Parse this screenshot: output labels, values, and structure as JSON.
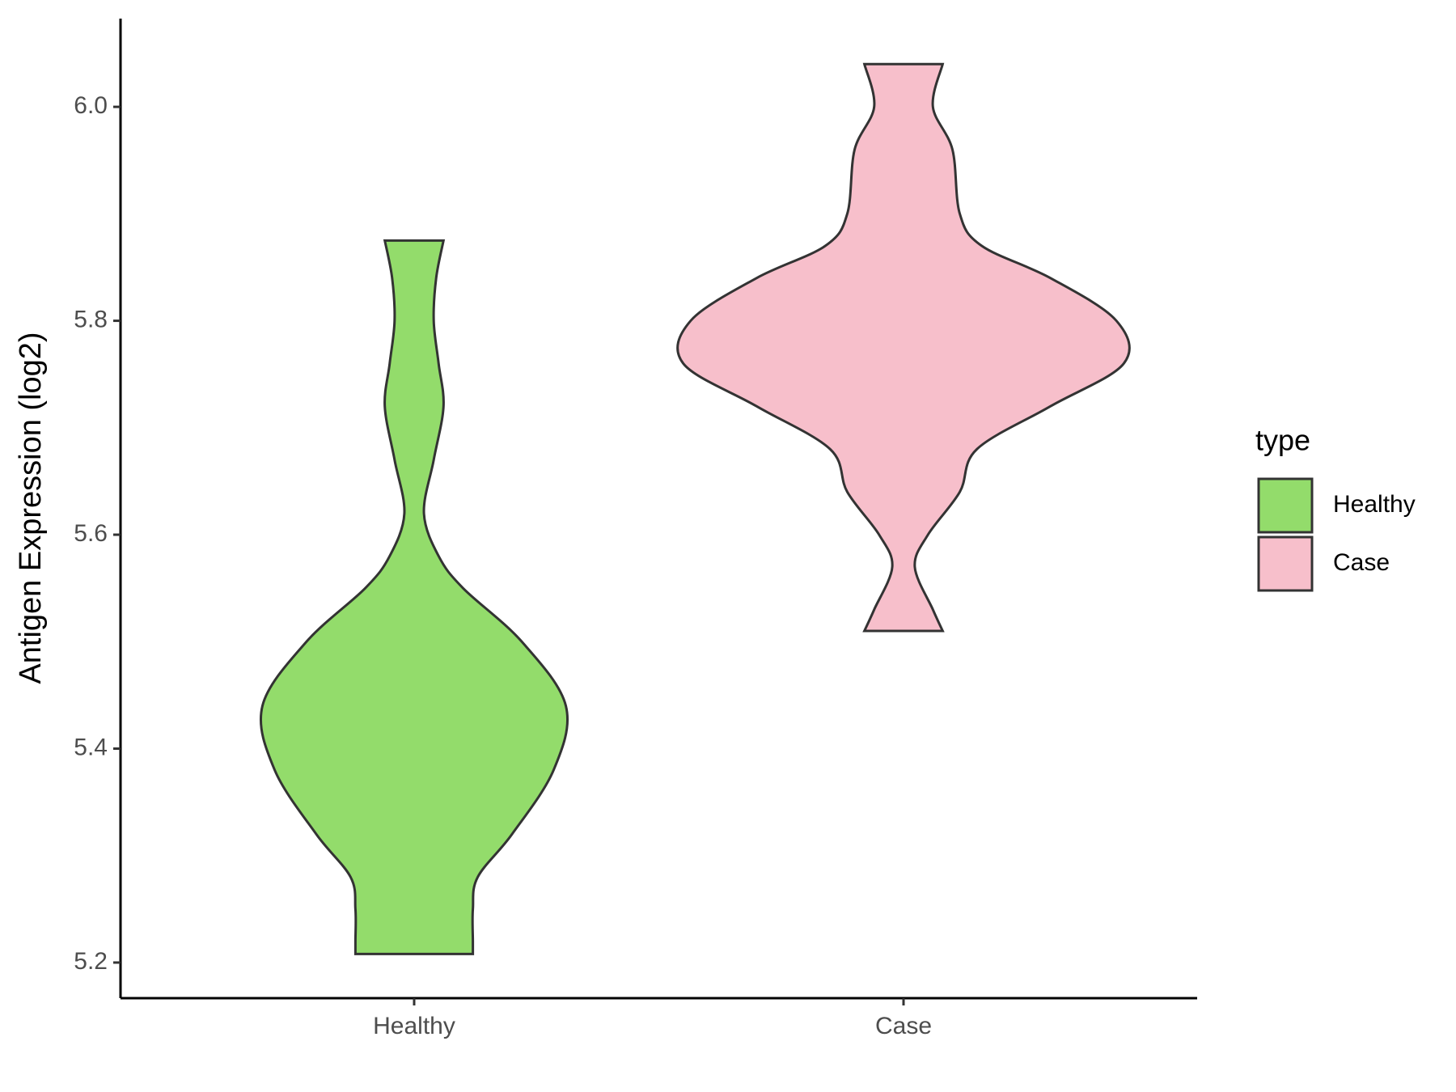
{
  "chart_data": {
    "type": "violin",
    "y_label": "Antigen Expression (log2)",
    "categories": [
      "Healthy",
      "Case"
    ],
    "series": [
      {
        "name": "Healthy",
        "color": "#93dc6b",
        "y": [
          5.875,
          5.84,
          5.8,
          5.76,
          5.72,
          5.67,
          5.62,
          5.58,
          5.55,
          5.5,
          5.44,
          5.38,
          5.32,
          5.28,
          5.25,
          5.22,
          5.208
        ],
        "width": [
          0.06,
          0.045,
          0.04,
          0.05,
          0.06,
          0.04,
          0.02,
          0.05,
          0.1,
          0.22,
          0.31,
          0.285,
          0.2,
          0.13,
          0.12,
          0.12,
          0.12
        ]
      },
      {
        "name": "Case",
        "color": "#f7bfcb",
        "y": [
          6.04,
          6.0,
          5.96,
          5.9,
          5.87,
          5.84,
          5.8,
          5.76,
          5.72,
          5.68,
          5.64,
          5.6,
          5.57,
          5.53,
          5.51
        ],
        "width": [
          0.08,
          0.06,
          0.1,
          0.115,
          0.16,
          0.3,
          0.435,
          0.45,
          0.3,
          0.15,
          0.115,
          0.05,
          0.023,
          0.06,
          0.08
        ]
      }
    ],
    "ylim": [
      5.1667,
      6.0825
    ],
    "yticks": [
      5.2,
      5.4,
      5.6,
      5.8,
      {
        "value": 6.0,
        "label": "6.0"
      }
    ],
    "legend_title": "type",
    "legend_position": "right"
  }
}
